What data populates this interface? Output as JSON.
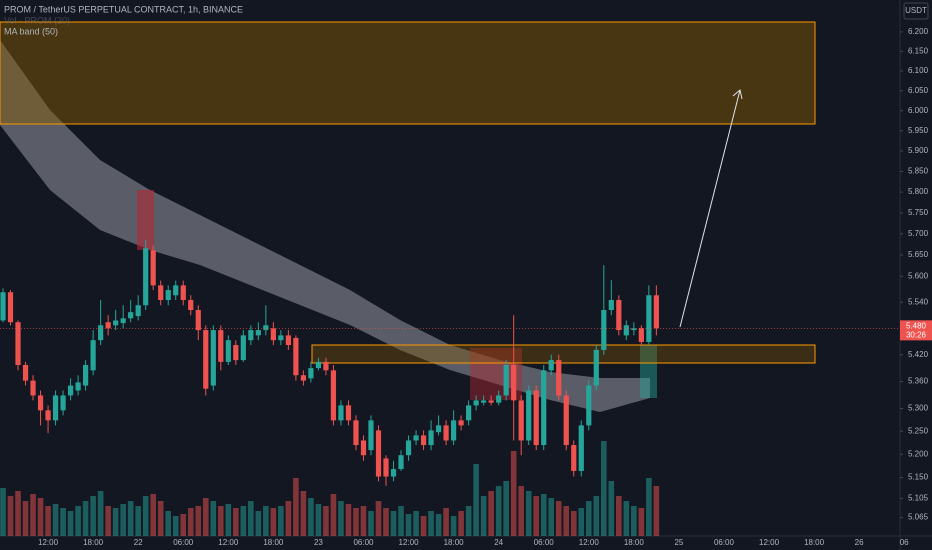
{
  "chart_data": {
    "type": "candlestick",
    "title": "PROM / TetherUS PERPETUAL CONTRACT, 1h, BINANCE",
    "indicators": [
      "Vol · PROM (20)",
      "MA band (50)"
    ],
    "currency": "USDT",
    "log": true,
    "grid": false,
    "up_color": "#26a69a",
    "down_color": "#ef5350",
    "ylim": [
      5.026,
      6.283
    ],
    "yticks": [
      {
        "value": 6.2,
        "label": "6.200"
      },
      {
        "value": 6.15,
        "label": "6.150"
      },
      {
        "value": 6.1,
        "label": "6.100"
      },
      {
        "value": 6.05,
        "label": "6.050"
      },
      {
        "value": 6.0,
        "label": "6.000"
      },
      {
        "value": 5.95,
        "label": "5.950"
      },
      {
        "value": 5.9,
        "label": "5.900"
      },
      {
        "value": 5.85,
        "label": "5.850"
      },
      {
        "value": 5.8,
        "label": "5.800"
      },
      {
        "value": 5.75,
        "label": "5.750"
      },
      {
        "value": 5.7,
        "label": "5.700"
      },
      {
        "value": 5.65,
        "label": "5.650"
      },
      {
        "value": 5.6,
        "label": "5.600"
      },
      {
        "value": 5.54,
        "label": "5.540"
      },
      {
        "value": 5.42,
        "label": "5.420"
      },
      {
        "value": 5.36,
        "label": "5.360"
      },
      {
        "value": 5.3,
        "label": "5.300"
      },
      {
        "value": 5.25,
        "label": "5.250"
      },
      {
        "value": 5.2,
        "label": "5.200"
      },
      {
        "value": 5.15,
        "label": "5.150"
      },
      {
        "value": 5.105,
        "label": "5.105"
      },
      {
        "value": 5.065,
        "label": "5.065"
      }
    ],
    "last_price": {
      "value": 5.48,
      "label": "5.480"
    },
    "countdown": "30:26",
    "categories": [
      null,
      null,
      null,
      null,
      null,
      null,
      "12:00",
      null,
      null,
      null,
      null,
      null,
      "18:00",
      null,
      null,
      null,
      null,
      null,
      "22",
      null,
      null,
      null,
      null,
      null,
      "06:00",
      null,
      null,
      null,
      null,
      null,
      "12:00",
      null,
      null,
      null,
      null,
      null,
      "18:00",
      null,
      null,
      null,
      null,
      null,
      "23",
      null,
      null,
      null,
      null,
      null,
      "06:00",
      null,
      null,
      null,
      null,
      null,
      "12:00",
      null,
      null,
      null,
      null,
      null,
      "18:00",
      null,
      null,
      null,
      null,
      null,
      "24",
      null,
      null,
      null,
      null,
      null,
      "06:00",
      null,
      null,
      null,
      null,
      null,
      "12:00",
      null,
      null,
      null,
      null,
      null,
      "18:00",
      null,
      null,
      null,
      null,
      null,
      "25",
      null,
      null,
      null,
      null,
      null,
      "06:00",
      null,
      null,
      null,
      null,
      null,
      "12:00",
      null,
      null,
      null,
      null,
      null,
      "18:00",
      null,
      null,
      null,
      null,
      null,
      "26",
      null,
      null,
      null,
      null,
      null,
      "06"
    ],
    "open": [
      5.498,
      5.563,
      5.494,
      5.397,
      5.362,
      5.329,
      5.296,
      5.274,
      5.296,
      5.329,
      5.34,
      5.351,
      5.385,
      5.453,
      5.494,
      5.487,
      5.492,
      5.503,
      5.508,
      5.533,
      5.661,
      5.579,
      5.545,
      5.556,
      5.579,
      5.545,
      5.522,
      5.476,
      5.351,
      5.476,
      5.404,
      5.442,
      5.408,
      5.453,
      5.464,
      5.476,
      5.48,
      5.453,
      5.464,
      5.458,
      5.374,
      5.367,
      5.39,
      5.404,
      5.385,
      5.274,
      5.307,
      5.274,
      5.23,
      5.209,
      5.252,
      5.191,
      5.152,
      5.168,
      5.198,
      5.23,
      5.241,
      5.22,
      5.248,
      5.263,
      5.23,
      5.274,
      5.274,
      5.307,
      5.313,
      5.318,
      5.313,
      5.329,
      5.397,
      5.318,
      5.23,
      5.34,
      5.22,
      5.385,
      5.408,
      5.329,
      5.22,
      5.164,
      5.263,
      5.351,
      5.431,
      5.522,
      5.545,
      5.464,
      5.476,
      5.48,
      5.449,
      5.556,
      null,
      null,
      null,
      null,
      null,
      null,
      null,
      null,
      null,
      null,
      null,
      null,
      null,
      null,
      null,
      null,
      null,
      null,
      null,
      null,
      null,
      null,
      null,
      null,
      null,
      null,
      null,
      null,
      null,
      null,
      null,
      null,
      null
    ],
    "high": [
      5.572,
      5.568,
      5.498,
      5.404,
      5.374,
      5.34,
      5.307,
      5.34,
      5.34,
      5.367,
      5.374,
      5.408,
      5.476,
      5.545,
      5.51,
      5.522,
      5.533,
      5.545,
      5.556,
      5.685,
      5.673,
      5.59,
      5.579,
      5.59,
      5.59,
      5.556,
      5.533,
      5.487,
      5.487,
      5.487,
      5.464,
      5.453,
      5.476,
      5.487,
      5.494,
      5.533,
      5.494,
      5.476,
      5.476,
      5.464,
      5.385,
      5.404,
      5.413,
      5.413,
      5.397,
      5.318,
      5.318,
      5.285,
      5.241,
      5.285,
      5.263,
      5.198,
      5.186,
      5.209,
      5.241,
      5.252,
      5.252,
      5.274,
      5.285,
      5.274,
      5.296,
      5.285,
      5.318,
      5.329,
      5.329,
      5.329,
      5.34,
      5.408,
      5.51,
      5.329,
      5.351,
      5.351,
      5.397,
      5.42,
      5.42,
      5.34,
      5.23,
      5.274,
      5.362,
      5.442,
      5.626,
      5.591,
      5.556,
      5.498,
      5.494,
      5.487,
      5.579,
      5.579,
      null,
      null,
      null,
      null,
      null,
      null,
      null,
      null,
      null,
      null,
      null,
      null,
      null,
      null,
      null,
      null,
      null,
      null,
      null,
      null,
      null,
      null,
      null,
      null,
      null,
      null,
      null,
      null,
      null,
      null,
      null,
      null,
      null
    ],
    "low": [
      5.494,
      5.487,
      5.385,
      5.351,
      5.318,
      5.263,
      5.246,
      5.263,
      5.285,
      5.318,
      5.329,
      5.34,
      5.374,
      5.442,
      5.464,
      5.476,
      5.48,
      5.494,
      5.498,
      5.522,
      5.568,
      5.533,
      5.533,
      5.545,
      5.533,
      5.51,
      5.453,
      5.329,
      5.34,
      5.385,
      5.397,
      5.397,
      5.404,
      5.442,
      5.453,
      5.464,
      5.442,
      5.442,
      5.431,
      5.362,
      5.351,
      5.358,
      5.385,
      5.374,
      5.263,
      5.263,
      5.263,
      5.209,
      5.186,
      5.198,
      5.142,
      5.132,
      5.142,
      5.164,
      5.186,
      5.22,
      5.209,
      5.209,
      5.241,
      5.22,
      5.22,
      5.252,
      5.263,
      5.296,
      5.307,
      5.307,
      5.307,
      5.318,
      5.23,
      5.198,
      5.22,
      5.209,
      5.209,
      5.374,
      5.318,
      5.209,
      5.152,
      5.152,
      5.252,
      5.34,
      5.42,
      5.51,
      5.464,
      5.453,
      5.464,
      5.442,
      5.442,
      5.464,
      null,
      null,
      null,
      null,
      null,
      null,
      null,
      null,
      null,
      null,
      null,
      null,
      null,
      null,
      null,
      null,
      null,
      null,
      null,
      null,
      null,
      null,
      null,
      null,
      null,
      null,
      null,
      null,
      null,
      null,
      null,
      null,
      null
    ],
    "close": [
      5.563,
      5.494,
      5.397,
      5.362,
      5.329,
      5.296,
      5.274,
      5.329,
      5.329,
      5.351,
      5.358,
      5.397,
      5.453,
      5.487,
      5.48,
      5.498,
      5.503,
      5.517,
      5.533,
      5.666,
      5.579,
      5.545,
      5.568,
      5.579,
      5.545,
      5.522,
      5.476,
      5.344,
      5.476,
      5.404,
      5.453,
      5.408,
      5.464,
      5.476,
      5.476,
      5.487,
      5.453,
      5.464,
      5.442,
      5.374,
      5.362,
      5.39,
      5.404,
      5.385,
      5.274,
      5.307,
      5.274,
      5.22,
      5.198,
      5.274,
      5.152,
      5.152,
      5.168,
      5.198,
      5.23,
      5.241,
      5.22,
      5.252,
      5.263,
      5.23,
      5.274,
      5.263,
      5.307,
      5.318,
      5.318,
      5.313,
      5.329,
      5.397,
      5.318,
      5.23,
      5.34,
      5.22,
      5.385,
      5.408,
      5.329,
      5.22,
      5.164,
      5.263,
      5.351,
      5.431,
      5.522,
      5.545,
      5.476,
      5.487,
      5.48,
      5.449,
      5.556,
      5.48,
      null,
      null,
      null,
      null,
      null,
      null,
      null,
      null,
      null,
      null,
      null,
      null,
      null,
      null,
      null,
      null,
      null,
      null,
      null,
      null,
      null,
      null,
      null,
      null,
      null,
      null,
      null,
      null,
      null,
      null,
      null,
      null,
      null
    ],
    "volume": [
      48,
      40,
      45,
      35,
      42,
      38,
      30,
      32,
      28,
      25,
      30,
      35,
      40,
      45,
      30,
      28,
      32,
      35,
      30,
      40,
      42,
      35,
      25,
      20,
      22,
      28,
      30,
      38,
      35,
      30,
      32,
      28,
      30,
      35,
      25,
      30,
      28,
      30,
      35,
      58,
      45,
      38,
      32,
      30,
      42,
      35,
      32,
      28,
      30,
      25,
      35,
      28,
      25,
      30,
      22,
      25,
      20,
      25,
      22,
      28,
      20,
      25,
      30,
      72,
      40,
      45,
      50,
      55,
      85,
      50,
      45,
      40,
      42,
      38,
      35,
      30,
      25,
      28,
      35,
      40,
      95,
      55,
      40,
      35,
      30,
      28,
      58,
      50,
      null,
      null,
      null,
      null,
      null,
      null,
      null,
      null,
      null,
      null,
      null,
      null,
      null,
      null,
      null,
      null,
      null,
      null,
      null,
      null,
      null,
      null,
      null,
      null,
      null,
      null,
      null,
      null,
      null,
      null,
      null,
      null,
      null
    ]
  }
}
